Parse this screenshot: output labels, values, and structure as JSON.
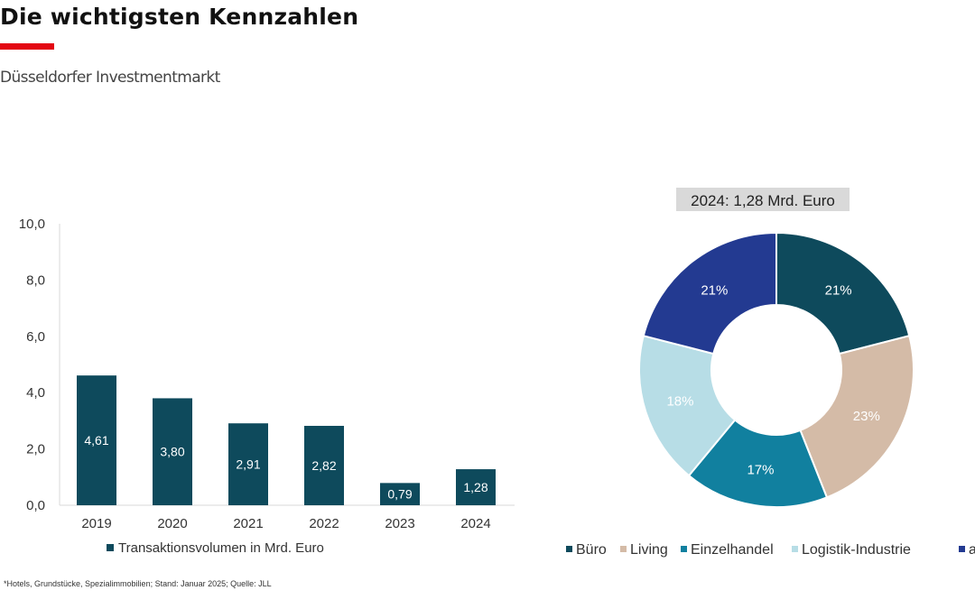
{
  "header": {
    "title": "Die wichtigsten Kennzahlen",
    "subtitle": "Düsseldorfer Investmentmarkt",
    "accent_color": "#e30613"
  },
  "footnote": "*Hotels, Grundstücke, Spezialimmobilien; Stand: Januar 2025; Quelle: JLL",
  "chart_data": [
    {
      "type": "bar",
      "categories": [
        "2019",
        "2020",
        "2021",
        "2022",
        "2023",
        "2024"
      ],
      "series": [
        {
          "name": "Transaktionsvolumen in Mrd. Euro",
          "values": [
            4.61,
            3.8,
            2.91,
            2.82,
            0.79,
            1.28
          ],
          "color": "#0e4a5c"
        }
      ],
      "data_labels": [
        "4,61",
        "3,80",
        "2,91",
        "2,82",
        "0,79",
        "1,28"
      ],
      "ylim": [
        0,
        10
      ],
      "yticks": [
        "0,0",
        "2,0",
        "4,0",
        "6,0",
        "8,0",
        "10,0"
      ],
      "legend": "bottom",
      "grid": false
    },
    {
      "type": "pie",
      "donut": true,
      "title": "2024: 1,28 Mrd. Euro",
      "categories": [
        "Büro",
        "Living",
        "Einzelhandel",
        "Logistik-Industrie",
        "ander"
      ],
      "values": [
        21,
        23,
        17,
        18,
        21
      ],
      "data_labels": [
        "21%",
        "23%",
        "17%",
        "18%",
        "21%"
      ],
      "colors": [
        "#0e4a5c",
        "#d4bba7",
        "#11809f",
        "#b7dde6",
        "#233a91"
      ],
      "label_colors": [
        "#ffffff",
        "#ffffff",
        "#ffffff",
        "#ffffff",
        "#ffffff"
      ],
      "legend": "bottom"
    }
  ]
}
